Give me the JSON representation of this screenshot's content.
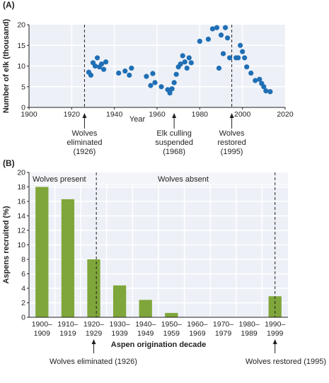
{
  "panel_a": {
    "label": "(A)",
    "chart_data": {
      "type": "scatter",
      "title": "",
      "xlabel": "Year",
      "ylabel": "Number of elk (thousand)",
      "xlim": [
        1900,
        2020
      ],
      "ylim": [
        0,
        20
      ],
      "xticks": [
        1900,
        1920,
        1940,
        1960,
        1980,
        2000,
        2020
      ],
      "yticks": [
        0,
        5,
        10,
        15,
        20
      ],
      "grid": true,
      "marker_color": "#1f6fb5",
      "points": [
        [
          1928,
          8.5
        ],
        [
          1929,
          7.8
        ],
        [
          1930,
          10.8
        ],
        [
          1931,
          10.0
        ],
        [
          1932,
          12.0
        ],
        [
          1933,
          9.8
        ],
        [
          1934,
          10.5
        ],
        [
          1935,
          9.2
        ],
        [
          1936,
          11.0
        ],
        [
          1942,
          8.3
        ],
        [
          1945,
          8.8
        ],
        [
          1947,
          7.8
        ],
        [
          1948,
          9.5
        ],
        [
          1955,
          7.5
        ],
        [
          1957,
          5.3
        ],
        [
          1958,
          8.2
        ],
        [
          1959,
          6.0
        ],
        [
          1962,
          5.0
        ],
        [
          1965,
          4.3
        ],
        [
          1966,
          3.5
        ],
        [
          1967,
          4.5
        ],
        [
          1968,
          6.0
        ],
        [
          1969,
          8.0
        ],
        [
          1970,
          9.8
        ],
        [
          1971,
          10.5
        ],
        [
          1972,
          12.5
        ],
        [
          1973,
          11.0
        ],
        [
          1974,
          9.5
        ],
        [
          1975,
          12.0
        ],
        [
          1976,
          10.8
        ],
        [
          1980,
          16.0
        ],
        [
          1984,
          16.5
        ],
        [
          1986,
          19.0
        ],
        [
          1988,
          19.3
        ],
        [
          1989,
          9.5
        ],
        [
          1990,
          17.5
        ],
        [
          1991,
          13.0
        ],
        [
          1992,
          19.3
        ],
        [
          1993,
          16.8
        ],
        [
          1994,
          12.0
        ],
        [
          1997,
          12.0
        ],
        [
          1998,
          12.0
        ],
        [
          1999,
          15.0
        ],
        [
          2000,
          13.5
        ],
        [
          2001,
          12.0
        ],
        [
          2002,
          9.8
        ],
        [
          2004,
          8.3
        ],
        [
          2006,
          6.5
        ],
        [
          2008,
          6.8
        ],
        [
          2009,
          5.8
        ],
        [
          2010,
          5.0
        ],
        [
          2011,
          4.0
        ],
        [
          2013,
          3.8
        ]
      ],
      "annotations": [
        {
          "x": 1926,
          "lines": [
            "Wolves",
            "eliminated",
            "(1926)"
          ],
          "dashed": true
        },
        {
          "x": 1968,
          "lines": [
            "Elk culling",
            "suspended",
            "(1968)"
          ],
          "dashed": false
        },
        {
          "x": 1995,
          "lines": [
            "Wolves",
            "restored",
            "(1995)"
          ],
          "dashed": true
        }
      ]
    }
  },
  "panel_b": {
    "label": "(B)",
    "chart_data": {
      "type": "bar",
      "title": "",
      "xlabel": "Aspen origination decade",
      "ylabel": "Aspens recruited (%)",
      "ylim": [
        0,
        20
      ],
      "yticks": [
        0,
        2,
        4,
        6,
        8,
        10,
        12,
        14,
        16,
        18,
        20
      ],
      "grid": true,
      "bar_color": "#7fa63a",
      "categories": [
        [
          "1900–",
          "1909"
        ],
        [
          "1910–",
          "1919"
        ],
        [
          "1920–",
          "1929"
        ],
        [
          "1930–",
          "1939"
        ],
        [
          "1940–",
          "1949"
        ],
        [
          "1950–",
          "1959"
        ],
        [
          "1960–",
          "1969"
        ],
        [
          "1970–",
          "1979"
        ],
        [
          "1980–",
          "1989"
        ],
        [
          "1990–",
          "1999"
        ]
      ],
      "values": [
        18,
        16.3,
        8,
        4.4,
        2.4,
        0.6,
        0,
        0,
        0,
        2.9
      ],
      "region_labels": [
        "Wolves present",
        "Wolves absent"
      ],
      "annotations": [
        {
          "text": "Wolves eliminated (1926)",
          "category_index": 2
        },
        {
          "text": "Wolves restored (1995)",
          "category_index": 9
        }
      ]
    }
  }
}
